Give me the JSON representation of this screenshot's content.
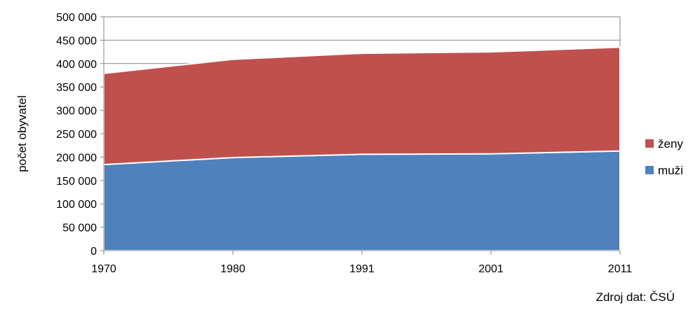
{
  "chart_data": {
    "type": "area",
    "stacked": true,
    "categories": [
      "1970",
      "1980",
      "1991",
      "2001",
      "2011"
    ],
    "series": [
      {
        "name": "muži",
        "values": [
          184000,
          199000,
          206000,
          207000,
          213000
        ],
        "color": "#4F81BD"
      },
      {
        "name": "ženy",
        "values": [
          195000,
          210000,
          216000,
          218000,
          222000
        ],
        "color": "#C0504D"
      }
    ],
    "ylabel": "počet obyvatel",
    "ylim": [
      0,
      500000
    ],
    "y_ticks": [
      "0",
      "50 000",
      "100 000",
      "150 000",
      "200 000",
      "250 000",
      "300 000",
      "350 000",
      "400 000",
      "450 000",
      "500 000"
    ],
    "grid": true,
    "legend_position": "right",
    "source": "Zdroj dat: ČSÚ"
  }
}
